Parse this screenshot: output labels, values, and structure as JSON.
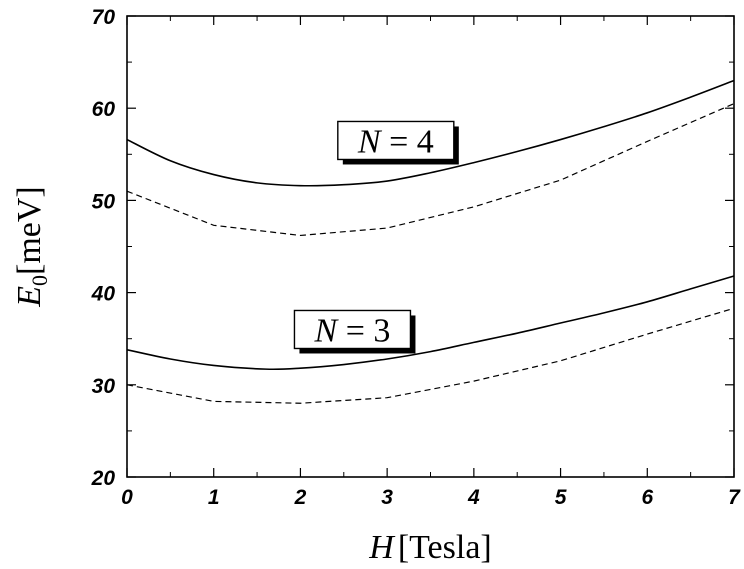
{
  "chart_data": {
    "type": "line",
    "xlabel": {
      "var": "H",
      "unit": "[Tesla]"
    },
    "ylabel": {
      "var": "E",
      "sub": "0",
      "unit": "[meV]"
    },
    "xlim": [
      0,
      7
    ],
    "ylim": [
      20,
      70
    ],
    "xticks": [
      "0",
      "1",
      "2",
      "3",
      "4",
      "5",
      "6",
      "7"
    ],
    "yticks": [
      "20",
      "30",
      "40",
      "50",
      "60",
      "70"
    ],
    "grid": false,
    "annotations": [
      {
        "var": "N",
        "rest": " = 4",
        "x": 3.1,
        "y": 56.5
      },
      {
        "var": "N",
        "rest": " = 3",
        "x": 2.6,
        "y": 36.0
      }
    ],
    "series": [
      {
        "style": "solid",
        "x": [
          0,
          0.5,
          1,
          1.5,
          2,
          2.5,
          3,
          3.5,
          4,
          4.5,
          5,
          5.5,
          6,
          6.5,
          7
        ],
        "y": [
          56.6,
          54.3,
          52.8,
          51.9,
          51.6,
          51.7,
          52.1,
          53.0,
          54.1,
          55.3,
          56.6,
          58.0,
          59.5,
          61.2,
          63.0
        ]
      },
      {
        "style": "dashed",
        "x": [
          0,
          1,
          2,
          3,
          4,
          5,
          6,
          7
        ],
        "y": [
          51.0,
          47.3,
          46.2,
          47.0,
          49.3,
          52.2,
          56.4,
          60.5
        ]
      },
      {
        "style": "solid",
        "x": [
          0,
          0.5,
          1,
          1.6,
          2,
          2.5,
          3,
          3.5,
          4,
          4.5,
          5,
          5.5,
          6,
          6.5,
          7
        ],
        "y": [
          33.8,
          32.8,
          32.1,
          31.7,
          31.8,
          32.2,
          32.8,
          33.6,
          34.6,
          35.6,
          36.7,
          37.8,
          39.0,
          40.4,
          41.8
        ]
      },
      {
        "style": "dashed",
        "x": [
          0,
          1,
          2,
          3,
          4,
          5,
          6,
          7
        ],
        "y": [
          30.0,
          28.2,
          28.0,
          28.6,
          30.4,
          32.6,
          35.5,
          38.3
        ]
      }
    ]
  }
}
